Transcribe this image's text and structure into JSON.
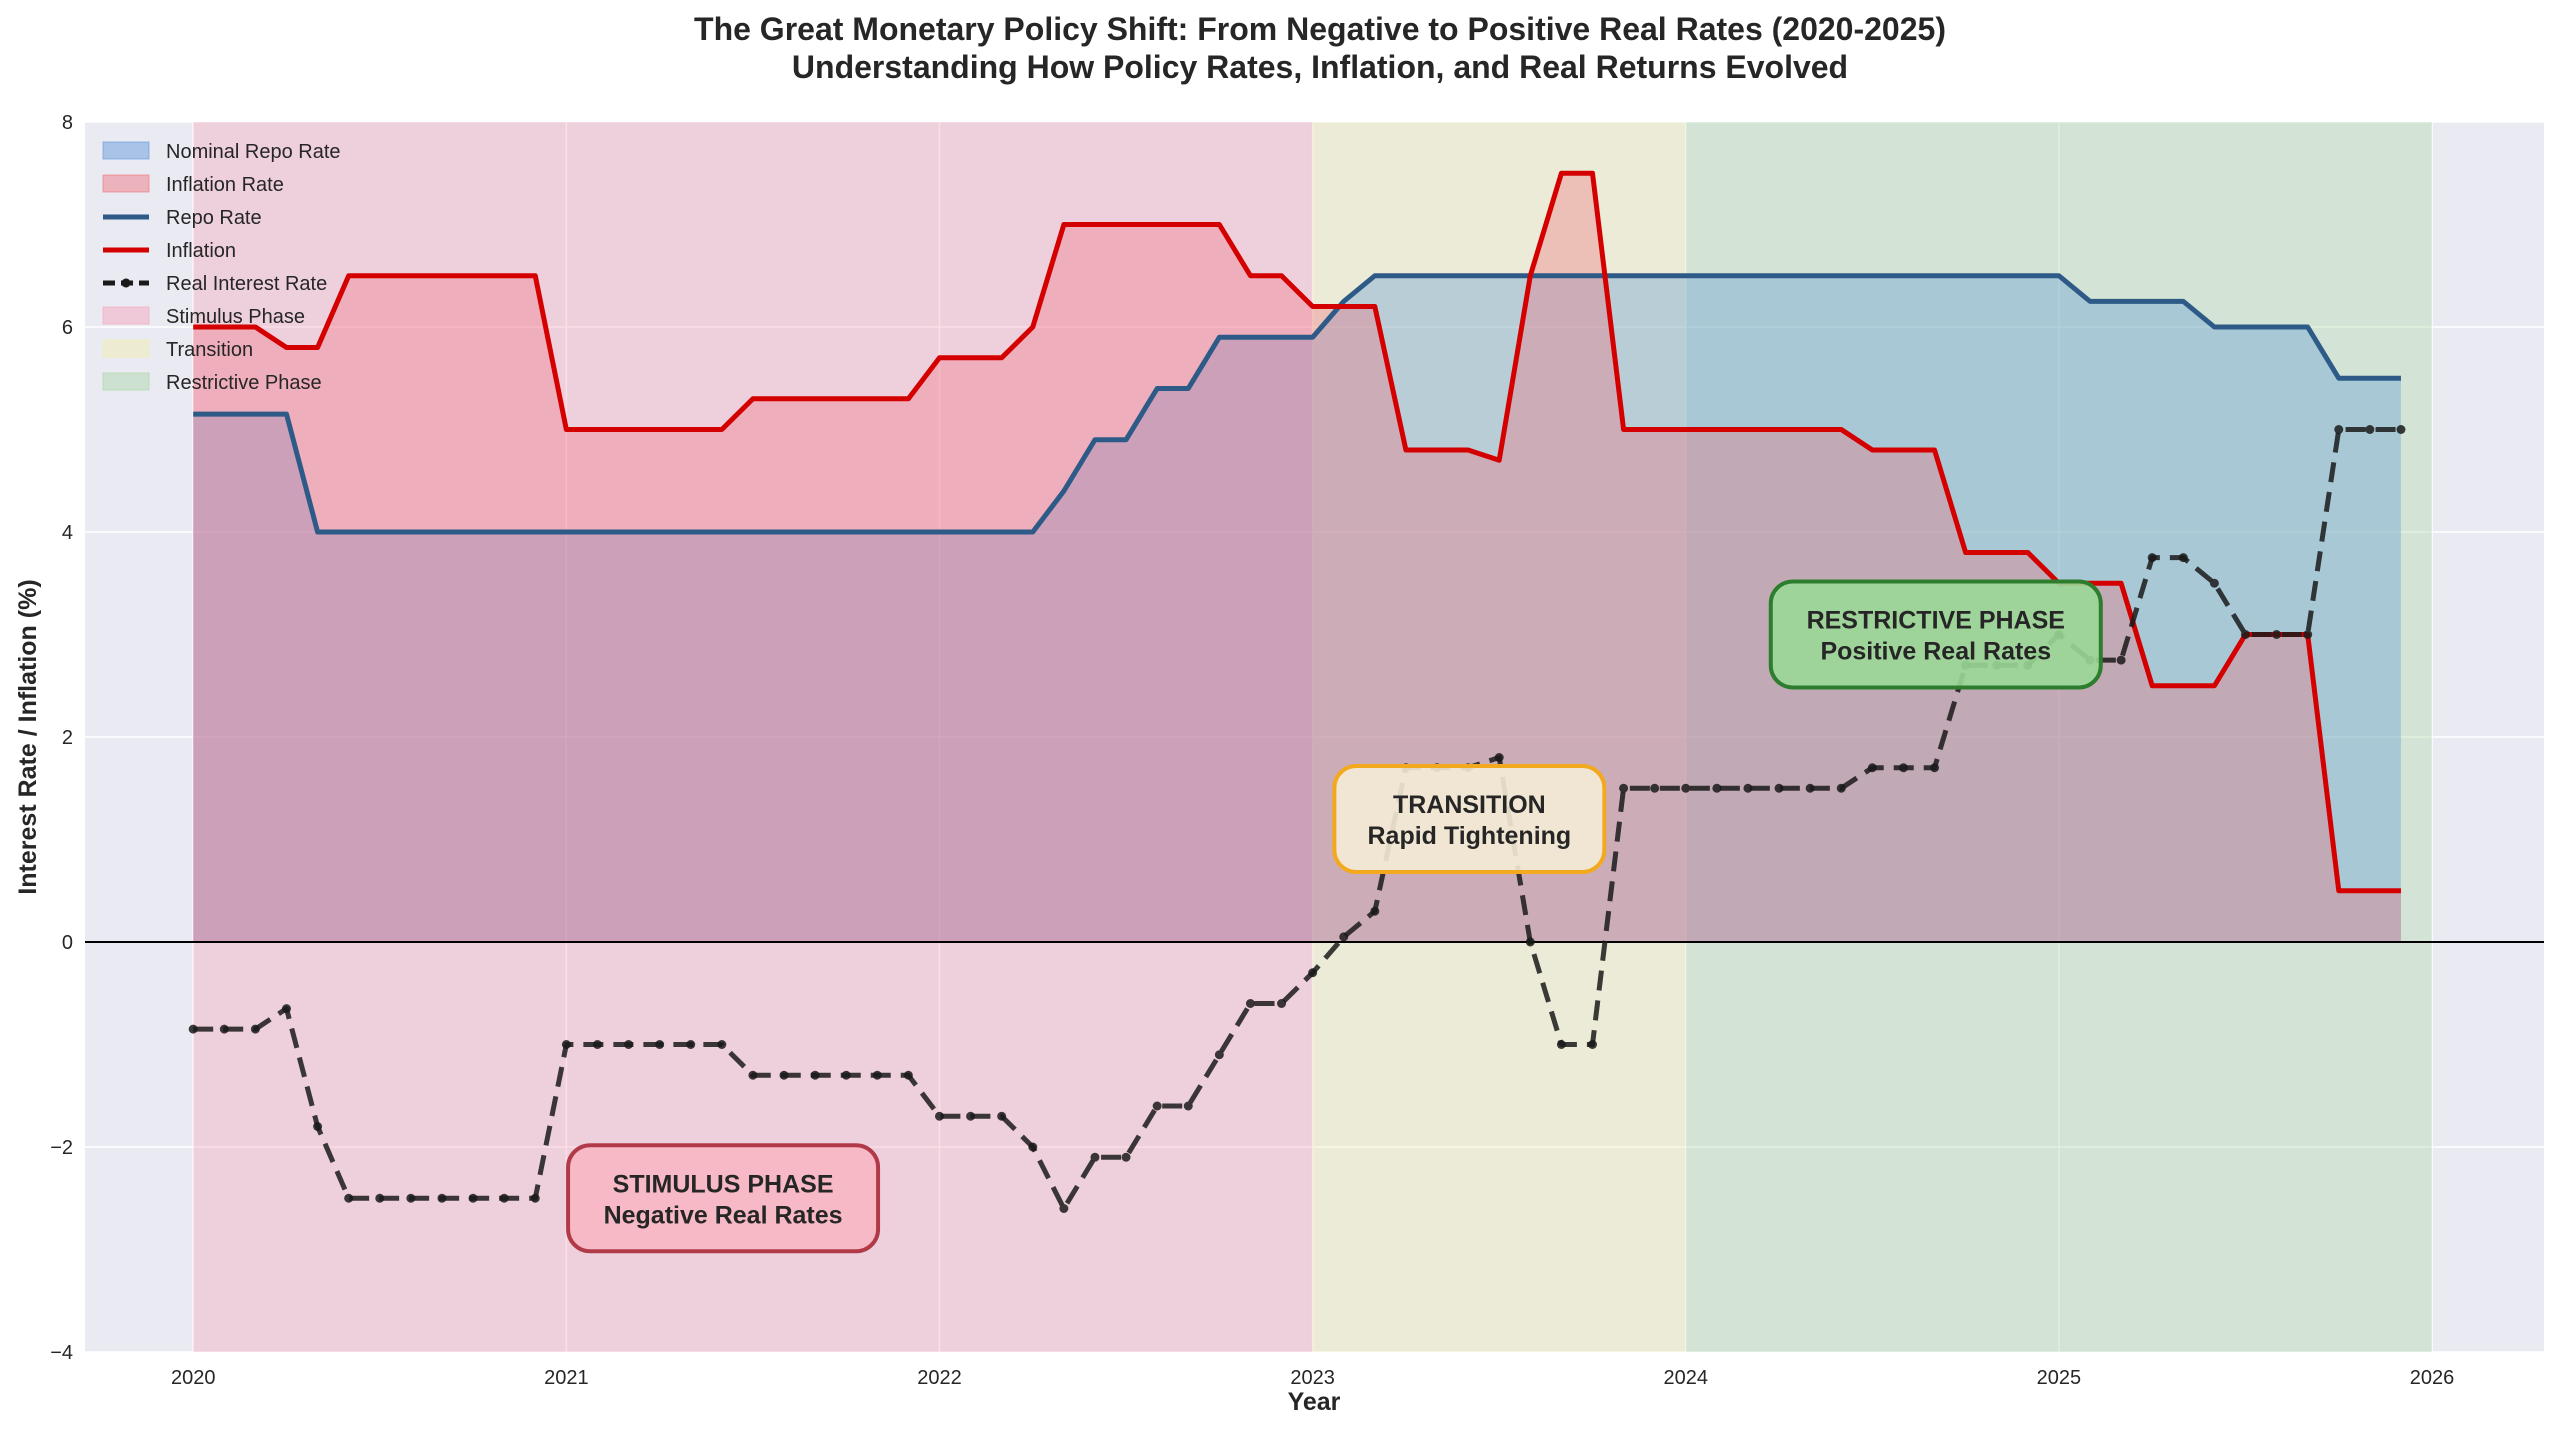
{
  "chart_data": {
    "type": "line",
    "title": "The Great Monetary Policy Shift: From Negative to Positive Real Rates (2020-2025)",
    "subtitle": "Understanding How Policy Rates, Inflation, and Real Returns Evolved",
    "xlabel": "Year",
    "ylabel": "Interest Rate / Inflation (%)",
    "xlim": [
      2019.71,
      2026.3
    ],
    "ylim": [
      -4,
      8
    ],
    "x_ticks": [
      "2020",
      "2021",
      "2022",
      "2023",
      "2024",
      "2025",
      "2026"
    ],
    "y_ticks": [
      "−4",
      "−2",
      "0",
      "2",
      "4",
      "6",
      "8"
    ],
    "grid": true,
    "legend_position": "top-left",
    "x_start": "2020-01",
    "x_frequency": "monthly",
    "series": [
      {
        "name": "Repo Rate",
        "color": "#2e5a87",
        "style": "solid",
        "values": [
          5.15,
          5.15,
          5.15,
          5.15,
          4,
          4,
          4,
          4,
          4,
          4,
          4,
          4,
          4,
          4,
          4,
          4,
          4,
          4,
          4,
          4,
          4,
          4,
          4,
          4,
          4,
          4,
          4,
          4,
          4.4,
          4.9,
          4.9,
          5.4,
          5.4,
          5.9,
          5.9,
          5.9,
          5.9,
          6.25,
          6.5,
          6.5,
          6.5,
          6.5,
          6.5,
          6.5,
          6.5,
          6.5,
          6.5,
          6.5,
          6.5,
          6.5,
          6.5,
          6.5,
          6.5,
          6.5,
          6.5,
          6.5,
          6.5,
          6.5,
          6.5,
          6.5,
          6.5,
          6.25,
          6.25,
          6.25,
          6.25,
          6,
          6,
          6,
          6,
          5.5,
          5.5,
          5.5
        ]
      },
      {
        "name": "Inflation",
        "color": "#d40000",
        "style": "solid",
        "values": [
          6,
          6,
          6,
          5.8,
          5.8,
          6.5,
          6.5,
          6.5,
          6.5,
          6.5,
          6.5,
          6.5,
          5,
          5,
          5,
          5,
          5,
          5,
          5.3,
          5.3,
          5.3,
          5.3,
          5.3,
          5.3,
          5.7,
          5.7,
          5.7,
          6,
          7,
          7,
          7,
          7,
          7,
          7,
          6.5,
          6.5,
          6.2,
          6.2,
          6.2,
          4.8,
          4.8,
          4.8,
          4.7,
          6.5,
          7.5,
          7.5,
          5,
          5,
          5,
          5,
          5,
          5,
          5,
          5,
          4.8,
          4.8,
          4.8,
          3.8,
          3.8,
          3.8,
          3.5,
          3.5,
          3.5,
          2.5,
          2.5,
          2.5,
          3,
          3,
          3,
          0.5,
          0.5,
          0.5
        ]
      },
      {
        "name": "Real Interest Rate",
        "color": "#1a1a1a",
        "style": "dashed-markers",
        "values": [
          -0.85,
          -0.85,
          -0.85,
          -0.65,
          -1.8,
          -2.5,
          -2.5,
          -2.5,
          -2.5,
          -2.5,
          -2.5,
          -2.5,
          -1,
          -1,
          -1,
          -1,
          -1,
          -1,
          -1.3,
          -1.3,
          -1.3,
          -1.3,
          -1.3,
          -1.3,
          -1.7,
          -1.7,
          -1.7,
          -2,
          -2.6,
          -2.1,
          -2.1,
          -1.6,
          -1.6,
          -1.1,
          -0.6,
          -0.6,
          -0.3,
          0.05,
          0.3,
          1.7,
          1.7,
          1.7,
          1.8,
          0,
          -1,
          -1,
          1.5,
          1.5,
          1.5,
          1.5,
          1.5,
          1.5,
          1.5,
          1.5,
          1.7,
          1.7,
          1.7,
          2.7,
          2.7,
          2.7,
          3,
          2.75,
          2.75,
          3.75,
          3.75,
          3.5,
          3,
          3,
          3,
          5,
          5,
          5
        ]
      }
    ],
    "fills": [
      {
        "name": "Nominal Repo Rate",
        "color": "#5b95d6",
        "from_series": "Repo Rate"
      },
      {
        "name": "Inflation Rate",
        "color": "#f0707a",
        "from_series": "Inflation"
      }
    ],
    "phases": [
      {
        "name": "Stimulus Phase",
        "start": 2020,
        "end": 2023,
        "color": "#f7a1b8"
      },
      {
        "name": "Transition",
        "start": 2023,
        "end": 2024,
        "color": "#f2eeaa"
      },
      {
        "name": "Restrictive Phase",
        "start": 2024,
        "end": 2026,
        "color": "#a9d6a4"
      }
    ],
    "annotations": [
      {
        "line1": "STIMULUS PHASE",
        "line2": "Negative Real Rates",
        "fill": "#f7b6c2",
        "border": "#b03a48"
      },
      {
        "line1": "TRANSITION",
        "line2": "Rapid Tightening",
        "fill": "#f5ecd6",
        "border": "#f2a91e"
      },
      {
        "line1": "RESTRICTIVE PHASE",
        "line2": "Positive Real Rates",
        "fill": "#9ad896",
        "border": "#2e7d2e"
      }
    ],
    "legend": [
      "Nominal Repo Rate",
      "Inflation Rate",
      "Repo Rate",
      "Inflation",
      "Real Interest Rate",
      "Stimulus Phase",
      "Transition",
      "Restrictive Phase"
    ]
  }
}
